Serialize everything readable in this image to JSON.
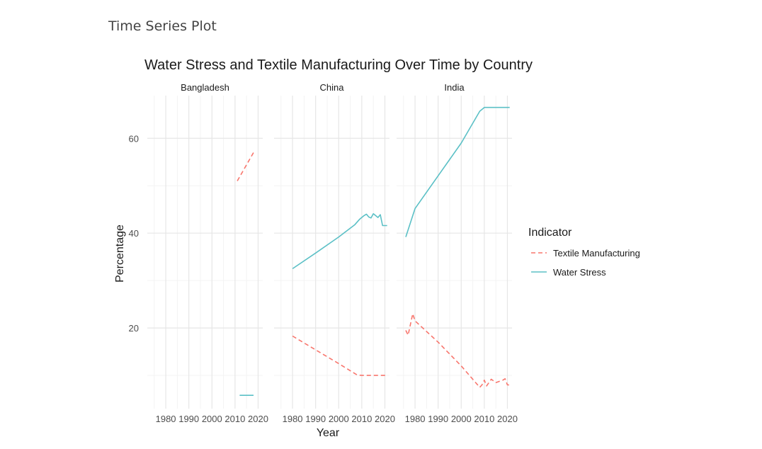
{
  "page": {
    "heading": "Time Series Plot"
  },
  "chart_data": {
    "type": "line",
    "title": "Water Stress and Textile Manufacturing Over Time by Country",
    "xlabel": "Year",
    "ylabel": "Percentage",
    "xlim": [
      1972,
      2022
    ],
    "ylim": [
      3,
      69
    ],
    "xticks": [
      1980,
      1990,
      2000,
      2010,
      2020
    ],
    "yticks": [
      20,
      40,
      60
    ],
    "grid": true,
    "legend": {
      "title": "Indicator",
      "position": "right",
      "entries": [
        {
          "name": "Textile Manufacturing",
          "color": "#F8766D",
          "dash": "dashed"
        },
        {
          "name": "Water Stress",
          "color": "#5BC0C6",
          "dash": "solid"
        }
      ]
    },
    "panels": [
      {
        "name": "Bangladesh",
        "series": [
          {
            "name": "Textile Manufacturing",
            "x": [
              2011,
              2018
            ],
            "y": [
              51,
              57
            ]
          },
          {
            "name": "Water Stress",
            "x": [
              2012,
              2018
            ],
            "y": [
              5.8,
              5.8
            ]
          }
        ]
      },
      {
        "name": "China",
        "series": [
          {
            "name": "Textile Manufacturing",
            "x": [
              1980,
              1990,
              2000,
              2008,
              2010,
              2015,
              2020,
              2021
            ],
            "y": [
              18.3,
              15.4,
              12.5,
              10.1,
              10.0,
              10.0,
              10.0,
              10.0
            ]
          },
          {
            "name": "Water Stress",
            "x": [
              1980,
              1990,
              2000,
              2007,
              2009,
              2011,
              2012,
              2013,
              2014,
              2015,
              2016,
              2017,
              2018,
              2019,
              2020,
              2021
            ],
            "y": [
              32.5,
              35.8,
              39.2,
              41.8,
              42.9,
              43.7,
              44.0,
              43.4,
              43.2,
              44.1,
              43.7,
              43.3,
              43.9,
              41.6,
              41.6,
              41.6
            ]
          }
        ]
      },
      {
        "name": "India",
        "series": [
          {
            "name": "Textile Manufacturing",
            "x": [
              1976,
              1977,
              1979,
              1980,
              1990,
              2000,
              2008,
              2009,
              2010,
              2011,
              2013,
              2015,
              2018,
              2019,
              2020,
              2021
            ],
            "y": [
              19.5,
              18.5,
              23.0,
              21.5,
              17.0,
              12.0,
              7.5,
              8.0,
              9.0,
              7.8,
              9.2,
              8.5,
              9.0,
              9.3,
              8.0,
              8.0
            ]
          },
          {
            "name": "Water Stress",
            "x": [
              1976,
              1980,
              1990,
              2000,
              2008,
              2010,
              2015,
              2020,
              2021
            ],
            "y": [
              39.2,
              45.2,
              52.1,
              59.0,
              65.7,
              66.5,
              66.5,
              66.5,
              66.5
            ]
          }
        ]
      }
    ]
  }
}
